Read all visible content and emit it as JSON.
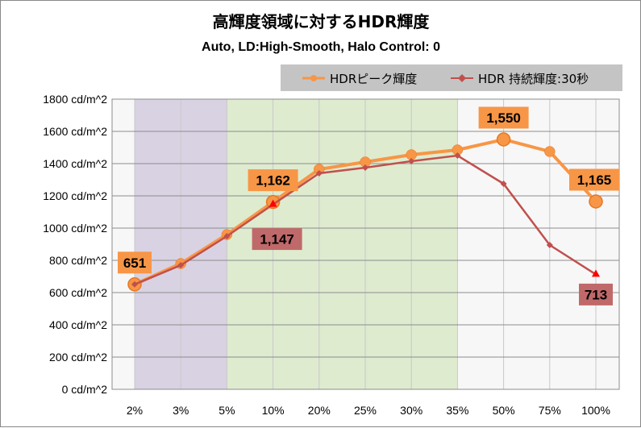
{
  "chart_data": {
    "type": "line",
    "title": "高輝度領域に対するHDR輝度",
    "subtitle": "Auto, LD:High-Smooth, Halo Control: 0",
    "categories": [
      "2%",
      "3%",
      "5%",
      "10%",
      "20%",
      "25%",
      "30%",
      "35%",
      "50%",
      "75%",
      "100%"
    ],
    "y_ticks": [
      "0 cd/m^2",
      "200 cd/m^2",
      "400 cd/m^2",
      "600 cd/m^2",
      "800 cd/m^2",
      "1000 cd/m^2",
      "1200 cd/m^2",
      "1400 cd/m^2",
      "1600 cd/m^2",
      "1800 cd/m^2"
    ],
    "ylim": [
      0,
      1800
    ],
    "grid": true,
    "legend_position": "top-right",
    "shaded_bands": [
      {
        "from": "2%",
        "to": "5%",
        "color": "#d9d2e3"
      },
      {
        "from": "5%",
        "to": "35%",
        "color": "#deebcf"
      }
    ],
    "series": [
      {
        "name": "HDRピーク輝度",
        "color": "#f79646",
        "values": [
          651,
          780,
          960,
          1162,
          1365,
          1410,
          1455,
          1485,
          1550,
          1475,
          1165
        ],
        "labels": {
          "0": "651",
          "3": "1,162",
          "8": "1,550",
          "10": "1,165"
        }
      },
      {
        "name": "HDR 持続輝度:30秒",
        "color": "#c0504d",
        "values": [
          651,
          770,
          950,
          1147,
          1340,
          1375,
          1415,
          1450,
          1275,
          895,
          713
        ],
        "labels": {
          "3": "1,147",
          "10": "713"
        }
      }
    ]
  }
}
